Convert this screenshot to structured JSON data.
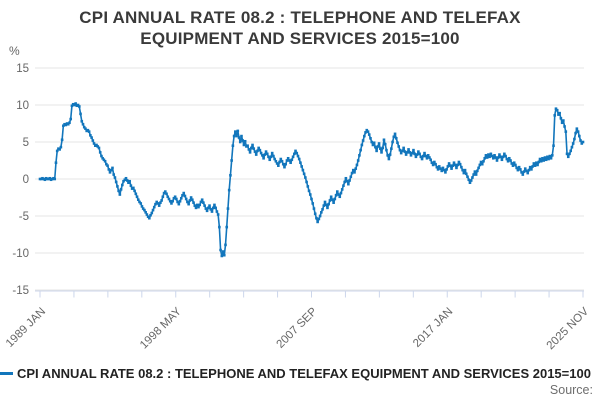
{
  "title_line1": "CPI ANNUAL RATE 08.2 : TELEPHONE AND TELEFAX",
  "title_line2": "EQUIPMENT AND SERVICES 2015=100",
  "y_unit": "%",
  "legend": {
    "label": "CPI ANNUAL RATE 08.2 : TELEPHONE AND TELEFAX EQUIPMENT AND SERVICES 2015=100"
  },
  "source_label": "Source:",
  "colors": {
    "line": "#1276bc",
    "grid": "#e6e6e6",
    "axis": "#ccd6eb",
    "tick_text": "#666666",
    "title_text": "#3a3a3a"
  },
  "chart_data": {
    "type": "line",
    "title": "CPI ANNUAL RATE 08.2 : TELEPHONE AND TELEFAX EQUIPMENT AND SERVICES 2015=100",
    "ylabel": "%",
    "ylim": [
      -15,
      15
    ],
    "yticks": [
      15,
      10,
      5,
      0,
      -5,
      -10,
      -15
    ],
    "xtick_labels": [
      "1989 JAN",
      "1998 MAY",
      "2007 SEP",
      "2017 JAN",
      "2025 NOV"
    ],
    "x_start": "1989-01",
    "x_end": "2025-11",
    "freq": "monthly",
    "grid": true,
    "legend_position": "bottom-left",
    "marker": "square",
    "values": [
      0,
      0,
      0.1,
      0,
      -0.1,
      0.1,
      0,
      0,
      0.1,
      -0.1,
      0,
      0.1,
      0,
      2.2,
      3.8,
      4.1,
      4.0,
      4.3,
      5.3,
      7.2,
      7.4,
      7.3,
      7.5,
      7.4,
      7.6,
      8.1,
      9.9,
      10.1,
      10.0,
      10.2,
      9.9,
      10.0,
      9.8,
      8.8,
      7.8,
      7.4,
      7.0,
      6.8,
      6.5,
      6.6,
      6.4,
      5.9,
      5.6,
      5.2,
      4.8,
      4.5,
      4.6,
      4.4,
      4.2,
      3.6,
      3.1,
      2.8,
      2.6,
      2.4,
      2.0,
      1.8,
      1.3,
      0.9,
      1.2,
      1.5,
      0.6,
      0.2,
      -0.4,
      -1.0,
      -1.6,
      -2.1,
      -1.4,
      -0.8,
      -0.3,
      -0.1,
      0.1,
      -0.2,
      -0.5,
      -0.3,
      -0.9,
      -1.3,
      -1.2,
      -1.6,
      -2.0,
      -2.4,
      -2.8,
      -3.1,
      -3.3,
      -3.7,
      -4.0,
      -4.2,
      -4.5,
      -4.8,
      -5.1,
      -5.3,
      -4.9,
      -4.6,
      -4.2,
      -3.8,
      -3.4,
      -3.1,
      -3.3,
      -3.6,
      -3.2,
      -2.9,
      -2.4,
      -1.9,
      -1.7,
      -2.0,
      -2.4,
      -2.7,
      -3.0,
      -3.3,
      -3.0,
      -2.6,
      -2.4,
      -2.7,
      -3.1,
      -3.4,
      -3.0,
      -2.6,
      -2.2,
      -1.9,
      -2.3,
      -2.7,
      -3.1,
      -3.4,
      -2.9,
      -2.5,
      -2.8,
      -3.2,
      -3.6,
      -3.9,
      -3.5,
      -3.8,
      -3.5,
      -3.1,
      -2.8,
      -3.2,
      -3.6,
      -4.0,
      -4.3,
      -3.9,
      -3.6,
      -4.1,
      -4.4,
      -3.9,
      -3.5,
      -3.9,
      -4.4,
      -4.8,
      -6.5,
      -9.6,
      -10.4,
      -9.8,
      -10.3,
      -8.9,
      -6.5,
      -4.0,
      -1.5,
      0.5,
      2.5,
      4.5,
      5.8,
      6.4,
      5.8,
      6.5,
      5.6,
      5.0,
      5.8,
      5.2,
      4.6,
      5.1,
      4.4,
      4.5,
      4.0,
      3.6,
      4.2,
      4.6,
      4.1,
      3.7,
      3.3,
      3.8,
      4.2,
      3.9,
      3.5,
      3.2,
      2.8,
      3.3,
      3.7,
      3.4,
      3.0,
      2.6,
      3.0,
      3.5,
      3.1,
      2.7,
      2.4,
      2.1,
      1.8,
      2.3,
      2.7,
      2.4,
      2.0,
      1.6,
      2.0,
      2.5,
      2.8,
      2.5,
      2.2,
      2.6,
      3.0,
      3.4,
      3.8,
      3.5,
      3.1,
      2.7,
      2.2,
      1.7,
      1.2,
      0.7,
      0.2,
      -0.4,
      -1.0,
      -1.6,
      -2.1,
      -2.7,
      -3.3,
      -4.0,
      -4.7,
      -5.3,
      -5.8,
      -5.4,
      -5.0,
      -4.5,
      -4.1,
      -3.6,
      -3.1,
      -3.5,
      -3.9,
      -3.4,
      -2.9,
      -2.4,
      -2.8,
      -3.2,
      -2.7,
      -2.2,
      -1.7,
      -2.1,
      -2.4,
      -1.9,
      -1.4,
      -0.9,
      -0.4,
      0.1,
      -0.3,
      -0.7,
      -0.2,
      0.3,
      0.8,
      1.2,
      0.9,
      1.4,
      1.9,
      2.5,
      3.2,
      3.9,
      4.6,
      5.2,
      5.8,
      6.3,
      6.6,
      6.4,
      6.0,
      5.5,
      5.0,
      4.6,
      4.9,
      4.3,
      3.8,
      4.4,
      4.8,
      4.1,
      3.6,
      4.2,
      5.3,
      4.7,
      3.9,
      3.2,
      2.7,
      3.3,
      4.1,
      5.0,
      5.7,
      6.1,
      5.5,
      4.9,
      4.4,
      3.9,
      3.5,
      3.8,
      4.2,
      3.7,
      3.3,
      3.6,
      4.0,
      3.6,
      3.2,
      3.5,
      3.9,
      3.4,
      3.0,
      3.3,
      3.7,
      3.4,
      3.0,
      2.7,
      3.1,
      3.5,
      3.1,
      2.8,
      3.2,
      2.9,
      2.6,
      2.2,
      1.9,
      2.3,
      2.0,
      1.6,
      1.3,
      1.7,
      1.4,
      1.1,
      1.5,
      1.2,
      0.9,
      1.3,
      1.7,
      2.1,
      1.8,
      1.4,
      1.8,
      2.2,
      1.9,
      1.5,
      1.9,
      2.3,
      2.0,
      1.6,
      1.2,
      0.8,
      1.2,
      0.7,
      0.3,
      -0.1,
      -0.5,
      -0.2,
      0.2,
      0.6,
      1.0,
      0.6,
      1.1,
      1.5,
      1.9,
      2.3,
      2.0,
      2.4,
      2.8,
      3.2,
      2.9,
      3.3,
      3.0,
      3.4,
      3.1,
      2.8,
      3.2,
      2.9,
      2.5,
      2.9,
      3.3,
      3.0,
      2.6,
      3.0,
      3.4,
      3.1,
      2.7,
      2.4,
      2.8,
      2.5,
      2.1,
      1.8,
      2.2,
      1.9,
      1.5,
      1.2,
      1.6,
      1.3,
      0.9,
      0.6,
      1.0,
      1.4,
      1.1,
      0.8,
      1.2,
      1.6,
      1.3,
      1.7,
      2.1,
      1.8,
      2.2,
      1.9,
      2.3,
      2.7,
      2.4,
      2.8,
      2.5,
      2.9,
      2.6,
      3.0,
      2.7,
      3.1,
      2.8,
      3.2,
      4.5,
      8.6,
      9.5,
      9.3,
      8.7,
      8.9,
      8.2,
      7.6,
      7.9,
      7.1,
      6.4,
      3.4,
      3.0,
      3.4,
      3.8,
      4.3,
      4.8,
      5.4,
      6.2,
      6.8,
      6.4,
      5.8,
      5.2,
      4.8,
      5.0
    ]
  }
}
